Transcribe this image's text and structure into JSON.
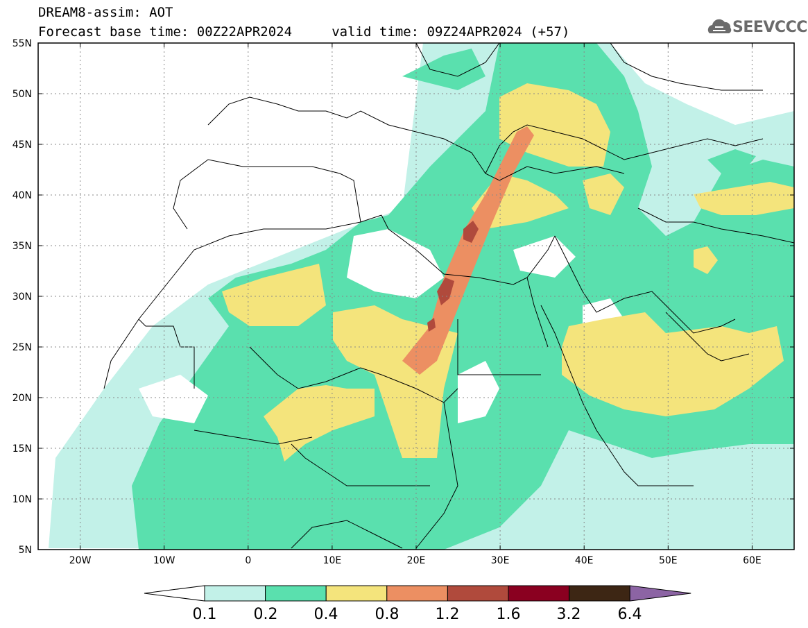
{
  "header": {
    "title_line1": "DREAM8-assim: AOT",
    "title_line2": "Forecast base time: 00Z22APR2024     valid time: 09Z24APR2024 (+57)",
    "logo_text": "SEEVCCC",
    "logo_icon": "cloud-logo-icon"
  },
  "map": {
    "lon_range": [
      -25,
      65
    ],
    "lat_range": [
      5,
      55
    ],
    "lat_labels": [
      "55N",
      "50N",
      "45N",
      "40N",
      "35N",
      "30N",
      "25N",
      "20N",
      "15N",
      "10N",
      "5N"
    ],
    "lon_labels": [
      "20W",
      "10W",
      "0",
      "10E",
      "20E",
      "30E",
      "40E",
      "50E",
      "60E"
    ],
    "gridlines": "dotted"
  },
  "legend": {
    "levels": [
      "0.1",
      "0.2",
      "0.4",
      "0.8",
      "1.2",
      "1.6",
      "3.2",
      "6.4"
    ],
    "colors": [
      "#ffffff",
      "#c2f1e8",
      "#5ae0ae",
      "#f4e47c",
      "#ec8f62",
      "#b04a3c",
      "#8a0020",
      "#3d2614",
      "#8c64a4"
    ]
  }
}
